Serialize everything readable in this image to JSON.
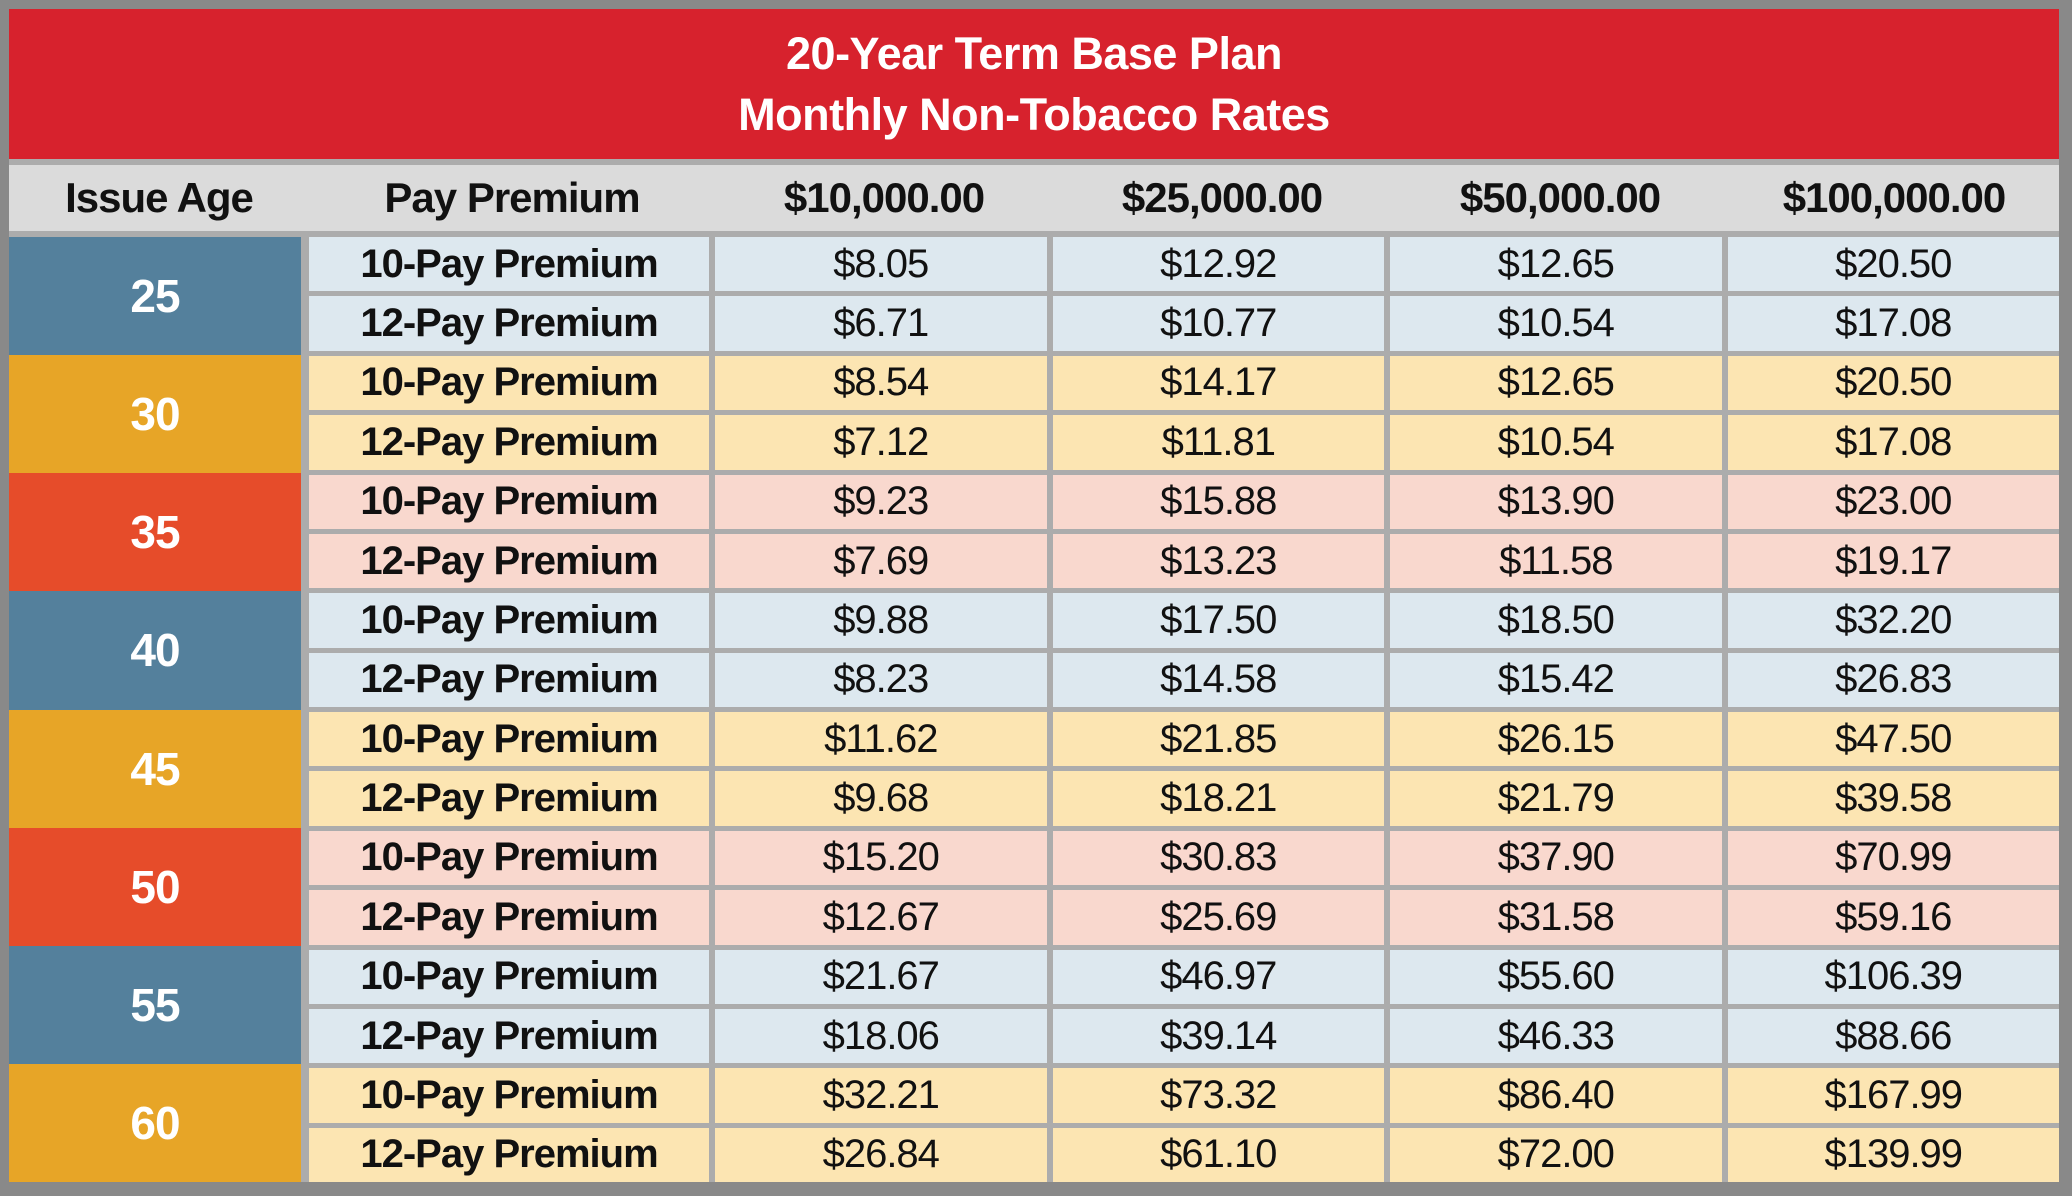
{
  "title": {
    "line1": "20-Year Term Base Plan",
    "line2": "Monthly Non-Tobacco Rates"
  },
  "columns": [
    "Issue Age",
    "Pay Premium",
    "$10,000.00",
    "$25,000.00",
    "$50,000.00",
    "$100,000.00"
  ],
  "colors": {
    "title_bar": "#D7222D",
    "header_row_bg": "#DBDBDB",
    "frame": "#898989",
    "grid_gap": "#ACACAC",
    "age_blue": "#54809C",
    "age_gold": "#E7A527",
    "age_red": "#E64C2A",
    "row_blue": "#DDE8EF",
    "row_gold": "#FCE5B2",
    "row_red": "#F9D8CE",
    "text_dark": "#111111",
    "text_light": "#FFFFFF"
  },
  "age_groups": [
    {
      "age": "25",
      "theme": "blue",
      "rows": [
        {
          "label": "10-Pay Premium",
          "values": [
            "$8.05",
            "$12.92",
            "$12.65",
            "$20.50"
          ]
        },
        {
          "label": "12-Pay Premium",
          "values": [
            "$6.71",
            "$10.77",
            "$10.54",
            "$17.08"
          ]
        }
      ]
    },
    {
      "age": "30",
      "theme": "gold",
      "rows": [
        {
          "label": "10-Pay Premium",
          "values": [
            "$8.54",
            "$14.17",
            "$12.65",
            "$20.50"
          ]
        },
        {
          "label": "12-Pay Premium",
          "values": [
            "$7.12",
            "$11.81",
            "$10.54",
            "$17.08"
          ]
        }
      ]
    },
    {
      "age": "35",
      "theme": "red",
      "rows": [
        {
          "label": "10-Pay Premium",
          "values": [
            "$9.23",
            "$15.88",
            "$13.90",
            "$23.00"
          ]
        },
        {
          "label": "12-Pay Premium",
          "values": [
            "$7.69",
            "$13.23",
            "$11.58",
            "$19.17"
          ]
        }
      ]
    },
    {
      "age": "40",
      "theme": "blue",
      "rows": [
        {
          "label": "10-Pay Premium",
          "values": [
            "$9.88",
            "$17.50",
            "$18.50",
            "$32.20"
          ]
        },
        {
          "label": "12-Pay Premium",
          "values": [
            "$8.23",
            "$14.58",
            "$15.42",
            "$26.83"
          ]
        }
      ]
    },
    {
      "age": "45",
      "theme": "gold",
      "rows": [
        {
          "label": "10-Pay Premium",
          "values": [
            "$11.62",
            "$21.85",
            "$26.15",
            "$47.50"
          ]
        },
        {
          "label": "12-Pay Premium",
          "values": [
            "$9.68",
            "$18.21",
            "$21.79",
            "$39.58"
          ]
        }
      ]
    },
    {
      "age": "50",
      "theme": "red",
      "rows": [
        {
          "label": "10-Pay Premium",
          "values": [
            "$15.20",
            "$30.83",
            "$37.90",
            "$70.99"
          ]
        },
        {
          "label": "12-Pay Premium",
          "values": [
            "$12.67",
            "$25.69",
            "$31.58",
            "$59.16"
          ]
        }
      ]
    },
    {
      "age": "55",
      "theme": "blue",
      "rows": [
        {
          "label": "10-Pay Premium",
          "values": [
            "$21.67",
            "$46.97",
            "$55.60",
            "$106.39"
          ]
        },
        {
          "label": "12-Pay Premium",
          "values": [
            "$18.06",
            "$39.14",
            "$46.33",
            "$88.66"
          ]
        }
      ]
    },
    {
      "age": "60",
      "theme": "gold",
      "rows": [
        {
          "label": "10-Pay Premium",
          "values": [
            "$32.21",
            "$73.32",
            "$86.40",
            "$167.99"
          ]
        },
        {
          "label": "12-Pay Premium",
          "values": [
            "$26.84",
            "$61.10",
            "$72.00",
            "$139.99"
          ]
        }
      ]
    }
  ],
  "chart_data": {
    "type": "table",
    "title": "20-Year Term Base Plan — Monthly Non-Tobacco Rates",
    "columns": [
      "Issue Age",
      "Pay Premium",
      "$10,000.00",
      "$25,000.00",
      "$50,000.00",
      "$100,000.00"
    ],
    "rows": [
      [
        "25",
        "10-Pay Premium",
        "$8.05",
        "$12.92",
        "$12.65",
        "$20.50"
      ],
      [
        "25",
        "12-Pay Premium",
        "$6.71",
        "$10.77",
        "$10.54",
        "$17.08"
      ],
      [
        "30",
        "10-Pay Premium",
        "$8.54",
        "$14.17",
        "$12.65",
        "$20.50"
      ],
      [
        "30",
        "12-Pay Premium",
        "$7.12",
        "$11.81",
        "$10.54",
        "$17.08"
      ],
      [
        "35",
        "10-Pay Premium",
        "$9.23",
        "$15.88",
        "$13.90",
        "$23.00"
      ],
      [
        "35",
        "12-Pay Premium",
        "$7.69",
        "$13.23",
        "$11.58",
        "$19.17"
      ],
      [
        "40",
        "10-Pay Premium",
        "$9.88",
        "$17.50",
        "$18.50",
        "$32.20"
      ],
      [
        "40",
        "12-Pay Premium",
        "$8.23",
        "$14.58",
        "$15.42",
        "$26.83"
      ],
      [
        "45",
        "10-Pay Premium",
        "$11.62",
        "$21.85",
        "$26.15",
        "$47.50"
      ],
      [
        "45",
        "12-Pay Premium",
        "$9.68",
        "$18.21",
        "$21.79",
        "$39.58"
      ],
      [
        "50",
        "10-Pay Premium",
        "$15.20",
        "$30.83",
        "$37.90",
        "$70.99"
      ],
      [
        "50",
        "12-Pay Premium",
        "$12.67",
        "$25.69",
        "$31.58",
        "$59.16"
      ],
      [
        "55",
        "10-Pay Premium",
        "$21.67",
        "$46.97",
        "$55.60",
        "$106.39"
      ],
      [
        "55",
        "12-Pay Premium",
        "$18.06",
        "$39.14",
        "$46.33",
        "$88.66"
      ],
      [
        "60",
        "10-Pay Premium",
        "$32.21",
        "$73.32",
        "$86.40",
        "$167.99"
      ],
      [
        "60",
        "12-Pay Premium",
        "$26.84",
        "$61.10",
        "$72.00",
        "$139.99"
      ]
    ]
  }
}
